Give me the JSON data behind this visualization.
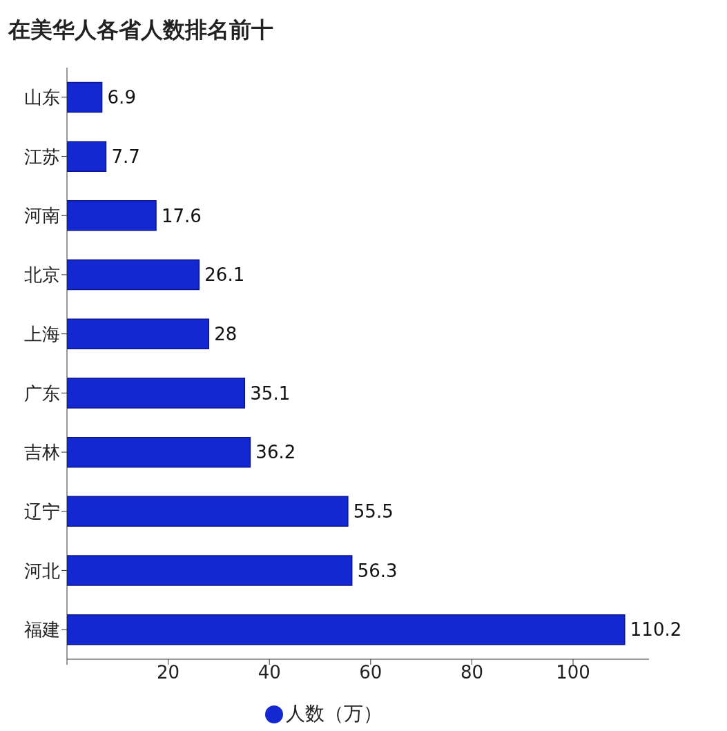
{
  "chart_data": {
    "type": "bar",
    "orientation": "horizontal",
    "title": "在美华人各省人数排名前十",
    "categories": [
      "山东",
      "江苏",
      "河南",
      "北京",
      "上海",
      "广东",
      "吉林",
      "辽宁",
      "河北",
      "福建"
    ],
    "series": [
      {
        "name": "人数（万）",
        "color": "#1428d2",
        "values": [
          6.9,
          7.7,
          17.6,
          26.1,
          28,
          35.1,
          36.2,
          55.5,
          56.3,
          110.2
        ]
      }
    ],
    "xlim": [
      0,
      115
    ],
    "xticks": [
      {
        "value": 0,
        "label": null
      },
      20,
      40,
      60,
      80,
      100
    ],
    "data_labels": true,
    "grid": false,
    "legend": "bottom"
  }
}
